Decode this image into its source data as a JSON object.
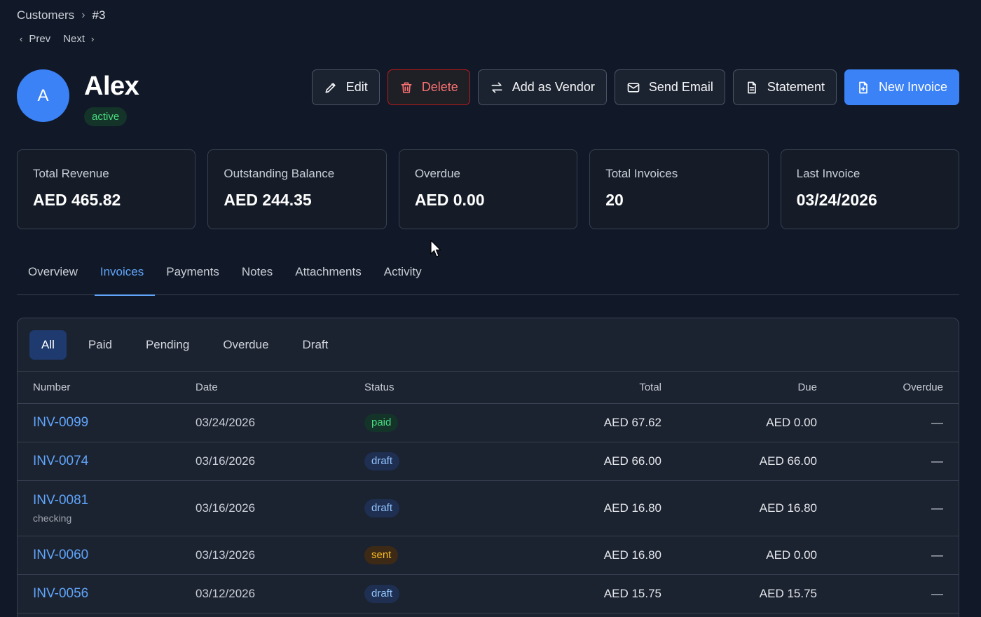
{
  "breadcrumb": {
    "parent": "Customers",
    "current": "#3"
  },
  "pager": {
    "prev": "Prev",
    "next": "Next"
  },
  "customer": {
    "initial": "A",
    "name": "Alex",
    "status": "active"
  },
  "actions": {
    "edit": "Edit",
    "delete": "Delete",
    "add_vendor": "Add as Vendor",
    "send_email": "Send Email",
    "statement": "Statement",
    "new_invoice": "New Invoice"
  },
  "stats": [
    {
      "label": "Total Revenue",
      "value": "AED 465.82"
    },
    {
      "label": "Outstanding Balance",
      "value": "AED 244.35"
    },
    {
      "label": "Overdue",
      "value": "AED 0.00"
    },
    {
      "label": "Total Invoices",
      "value": "20"
    },
    {
      "label": "Last Invoice",
      "value": "03/24/2026"
    }
  ],
  "tabs": [
    "Overview",
    "Invoices",
    "Payments",
    "Notes",
    "Attachments",
    "Activity"
  ],
  "active_tab": "Invoices",
  "filters": [
    "All",
    "Paid",
    "Pending",
    "Overdue",
    "Draft"
  ],
  "active_filter": "All",
  "table": {
    "headers": {
      "number": "Number",
      "date": "Date",
      "status": "Status",
      "total": "Total",
      "due": "Due",
      "overdue": "Overdue"
    },
    "rows": [
      {
        "number": "INV-0099",
        "sub": "",
        "date": "03/24/2026",
        "status": "paid",
        "total": "AED 67.62",
        "due": "AED 0.00",
        "overdue": "—"
      },
      {
        "number": "INV-0074",
        "sub": "",
        "date": "03/16/2026",
        "status": "draft",
        "total": "AED 66.00",
        "due": "AED 66.00",
        "overdue": "—"
      },
      {
        "number": "INV-0081",
        "sub": "checking",
        "date": "03/16/2026",
        "status": "draft",
        "total": "AED 16.80",
        "due": "AED 16.80",
        "overdue": "—"
      },
      {
        "number": "INV-0060",
        "sub": "",
        "date": "03/13/2026",
        "status": "sent",
        "total": "AED 16.80",
        "due": "AED 0.00",
        "overdue": "—"
      },
      {
        "number": "INV-0056",
        "sub": "",
        "date": "03/12/2026",
        "status": "draft",
        "total": "AED 15.75",
        "due": "AED 15.75",
        "overdue": "—"
      }
    ]
  },
  "colors": {
    "accent": "#3b82f6",
    "link": "#60a5fa",
    "danger": "#f87171",
    "success": "#4ade80",
    "background": "#111827"
  }
}
